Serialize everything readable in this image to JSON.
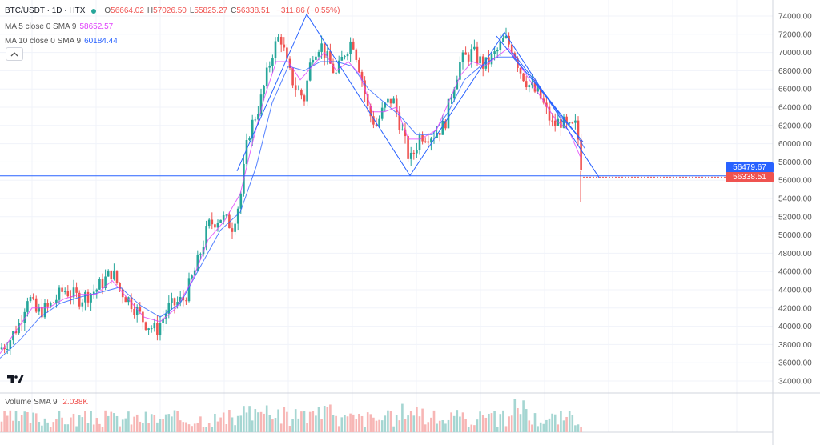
{
  "header": {
    "symbol": "BTC/USDT · 1D · HTX",
    "status_color": "#26a69a",
    "ohlc": [
      {
        "label": "O",
        "value": "56664.02"
      },
      {
        "label": "H",
        "value": "57026.50"
      },
      {
        "label": "L",
        "value": "55825.27"
      },
      {
        "label": "C",
        "value": "56338.51"
      }
    ],
    "change": "−311.86 (−0.55%)"
  },
  "indicators": [
    {
      "label": "MA 5 close 0 SMA 9",
      "value": "58652.57",
      "color": "#e040fb"
    },
    {
      "label": "MA 10 close 0 SMA 9",
      "value": "60184.44",
      "color": "#2962ff"
    }
  ],
  "price_axis": {
    "labels": [
      "74000.00",
      "72000.00",
      "70000.00",
      "68000.00",
      "66000.00",
      "64000.00",
      "62000.00",
      "60000.00",
      "58000.00",
      "56000.00",
      "54000.00",
      "52000.00",
      "50000.00",
      "48000.00",
      "46000.00",
      "44000.00",
      "42000.00",
      "40000.00",
      "38000.00",
      "36000.00",
      "34000.00"
    ],
    "last_price_badge": {
      "value": "56338.51",
      "color": "#ef5350"
    },
    "ma_price_badge": {
      "value": "56479.67",
      "color": "#2962ff"
    }
  },
  "volume": {
    "label": "Volume SMA 9",
    "value": "2.038K"
  },
  "chart_data": {
    "type": "candlestick",
    "title": "BTC/USDT · 1D · HTX",
    "ylim": [
      34000,
      75000
    ],
    "up_color": "#26a69a",
    "down_color": "#ef5350",
    "close_path": [
      [
        0,
        37500
      ],
      [
        12,
        38500
      ],
      [
        25,
        40500
      ],
      [
        35,
        43500
      ],
      [
        45,
        41500
      ],
      [
        60,
        42000
      ],
      [
        80,
        44000
      ],
      [
        100,
        43000
      ],
      [
        120,
        44000
      ],
      [
        140,
        46000
      ],
      [
        150,
        44000
      ],
      [
        165,
        42500
      ],
      [
        180,
        40500
      ],
      [
        195,
        39500
      ],
      [
        210,
        42000
      ],
      [
        230,
        43000
      ],
      [
        245,
        46500
      ],
      [
        260,
        51000
      ],
      [
        275,
        52000
      ],
      [
        290,
        51000
      ],
      [
        300,
        54000
      ],
      [
        310,
        61000
      ],
      [
        325,
        64500
      ],
      [
        340,
        70000
      ],
      [
        350,
        72000
      ],
      [
        360,
        68000
      ],
      [
        370,
        66000
      ],
      [
        380,
        65000
      ],
      [
        390,
        70000
      ],
      [
        400,
        71000
      ],
      [
        410,
        69000
      ],
      [
        420,
        67500
      ],
      [
        430,
        70000
      ],
      [
        440,
        71500
      ],
      [
        450,
        68000
      ],
      [
        460,
        63500
      ],
      [
        470,
        62000
      ],
      [
        480,
        64000
      ],
      [
        490,
        65000
      ],
      [
        500,
        62000
      ],
      [
        512,
        58000
      ],
      [
        525,
        61000
      ],
      [
        540,
        61000
      ],
      [
        555,
        62000
      ],
      [
        565,
        66000
      ],
      [
        575,
        69000
      ],
      [
        590,
        70000
      ],
      [
        605,
        68500
      ],
      [
        620,
        70000
      ],
      [
        630,
        71500
      ],
      [
        640,
        70500
      ],
      [
        650,
        68000
      ],
      [
        660,
        66500
      ],
      [
        675,
        65000
      ],
      [
        690,
        62000
      ],
      [
        700,
        62500
      ],
      [
        710,
        61500
      ],
      [
        720,
        62000
      ],
      [
        728,
        56000
      ]
    ],
    "ma5_path": [
      [
        0,
        37000
      ],
      [
        20,
        39500
      ],
      [
        40,
        42000
      ],
      [
        60,
        42000
      ],
      [
        80,
        43000
      ],
      [
        100,
        43500
      ],
      [
        120,
        43500
      ],
      [
        140,
        45000
      ],
      [
        160,
        43000
      ],
      [
        180,
        41000
      ],
      [
        200,
        40500
      ],
      [
        220,
        42000
      ],
      [
        240,
        45000
      ],
      [
        260,
        49500
      ],
      [
        280,
        51500
      ],
      [
        300,
        54500
      ],
      [
        315,
        60000
      ],
      [
        330,
        65000
      ],
      [
        345,
        69000
      ],
      [
        360,
        69000
      ],
      [
        375,
        67000
      ],
      [
        390,
        68500
      ],
      [
        405,
        70000
      ],
      [
        420,
        68000
      ],
      [
        435,
        69000
      ],
      [
        450,
        67500
      ],
      [
        465,
        63500
      ],
      [
        480,
        63500
      ],
      [
        495,
        64000
      ],
      [
        510,
        60500
      ],
      [
        525,
        60500
      ],
      [
        545,
        61500
      ],
      [
        560,
        64500
      ],
      [
        575,
        67500
      ],
      [
        590,
        69000
      ],
      [
        605,
        68500
      ],
      [
        620,
        69500
      ],
      [
        635,
        70500
      ],
      [
        650,
        68500
      ],
      [
        665,
        66500
      ],
      [
        680,
        64500
      ],
      [
        695,
        62500
      ],
      [
        710,
        61500
      ],
      [
        725,
        58500
      ]
    ],
    "ma10_path": [
      [
        0,
        36500
      ],
      [
        25,
        38500
      ],
      [
        50,
        41000
      ],
      [
        75,
        42500
      ],
      [
        100,
        43200
      ],
      [
        125,
        43700
      ],
      [
        150,
        44300
      ],
      [
        175,
        42300
      ],
      [
        200,
        41000
      ],
      [
        225,
        42500
      ],
      [
        250,
        46500
      ],
      [
        275,
        50500
      ],
      [
        300,
        52500
      ],
      [
        320,
        57500
      ],
      [
        340,
        64500
      ],
      [
        360,
        68500
      ],
      [
        380,
        68000
      ],
      [
        400,
        69000
      ],
      [
        420,
        69000
      ],
      [
        440,
        68500
      ],
      [
        460,
        66000
      ],
      [
        480,
        64500
      ],
      [
        500,
        63000
      ],
      [
        520,
        61000
      ],
      [
        540,
        61000
      ],
      [
        560,
        63500
      ],
      [
        580,
        67000
      ],
      [
        600,
        68500
      ],
      [
        620,
        69500
      ],
      [
        640,
        69500
      ],
      [
        660,
        67500
      ],
      [
        680,
        65500
      ],
      [
        700,
        63000
      ],
      [
        720,
        61000
      ],
      [
        730,
        59500
      ]
    ],
    "drawn_trendlines": [
      [
        [
          296,
          57000
        ],
        [
          383,
          74200
        ],
        [
          512,
          56500
        ],
        [
          630,
          72200
        ],
        [
          748,
          56300
        ]
      ]
    ],
    "horizontal_line": 56479.67,
    "volume_bars_scale": [
      0,
      1
    ]
  }
}
